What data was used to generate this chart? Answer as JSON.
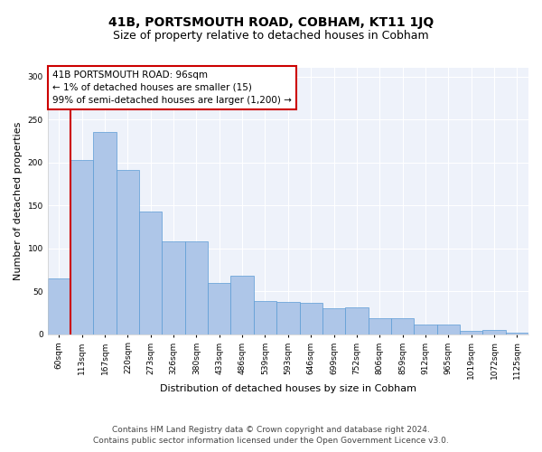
{
  "title": "41B, PORTSMOUTH ROAD, COBHAM, KT11 1JQ",
  "subtitle": "Size of property relative to detached houses in Cobham",
  "xlabel": "Distribution of detached houses by size in Cobham",
  "ylabel": "Number of detached properties",
  "categories": [
    "60sqm",
    "113sqm",
    "167sqm",
    "220sqm",
    "273sqm",
    "326sqm",
    "380sqm",
    "433sqm",
    "486sqm",
    "539sqm",
    "593sqm",
    "646sqm",
    "699sqm",
    "752sqm",
    "806sqm",
    "859sqm",
    "912sqm",
    "965sqm",
    "1019sqm",
    "1072sqm",
    "1125sqm"
  ],
  "values": [
    65,
    203,
    235,
    191,
    143,
    108,
    108,
    60,
    68,
    39,
    38,
    37,
    30,
    31,
    19,
    19,
    11,
    11,
    4,
    5,
    2
  ],
  "bar_color": "#aec6e8",
  "bar_edge_color": "#5b9bd5",
  "highlight_color": "#cc0000",
  "annotation_text": "41B PORTSMOUTH ROAD: 96sqm\n← 1% of detached houses are smaller (15)\n99% of semi-detached houses are larger (1,200) →",
  "annotation_box_color": "#ffffff",
  "annotation_box_edge_color": "#cc0000",
  "ylim": [
    0,
    310
  ],
  "yticks": [
    0,
    50,
    100,
    150,
    200,
    250,
    300
  ],
  "footer_line1": "Contains HM Land Registry data © Crown copyright and database right 2024.",
  "footer_line2": "Contains public sector information licensed under the Open Government Licence v3.0.",
  "bg_color": "#eef2fa",
  "grid_color": "#ffffff",
  "fig_bg_color": "#ffffff",
  "title_fontsize": 10,
  "subtitle_fontsize": 9,
  "axis_label_fontsize": 8,
  "tick_fontsize": 6.5,
  "annotation_fontsize": 7.5,
  "footer_fontsize": 6.5,
  "red_line_x": 0.5
}
